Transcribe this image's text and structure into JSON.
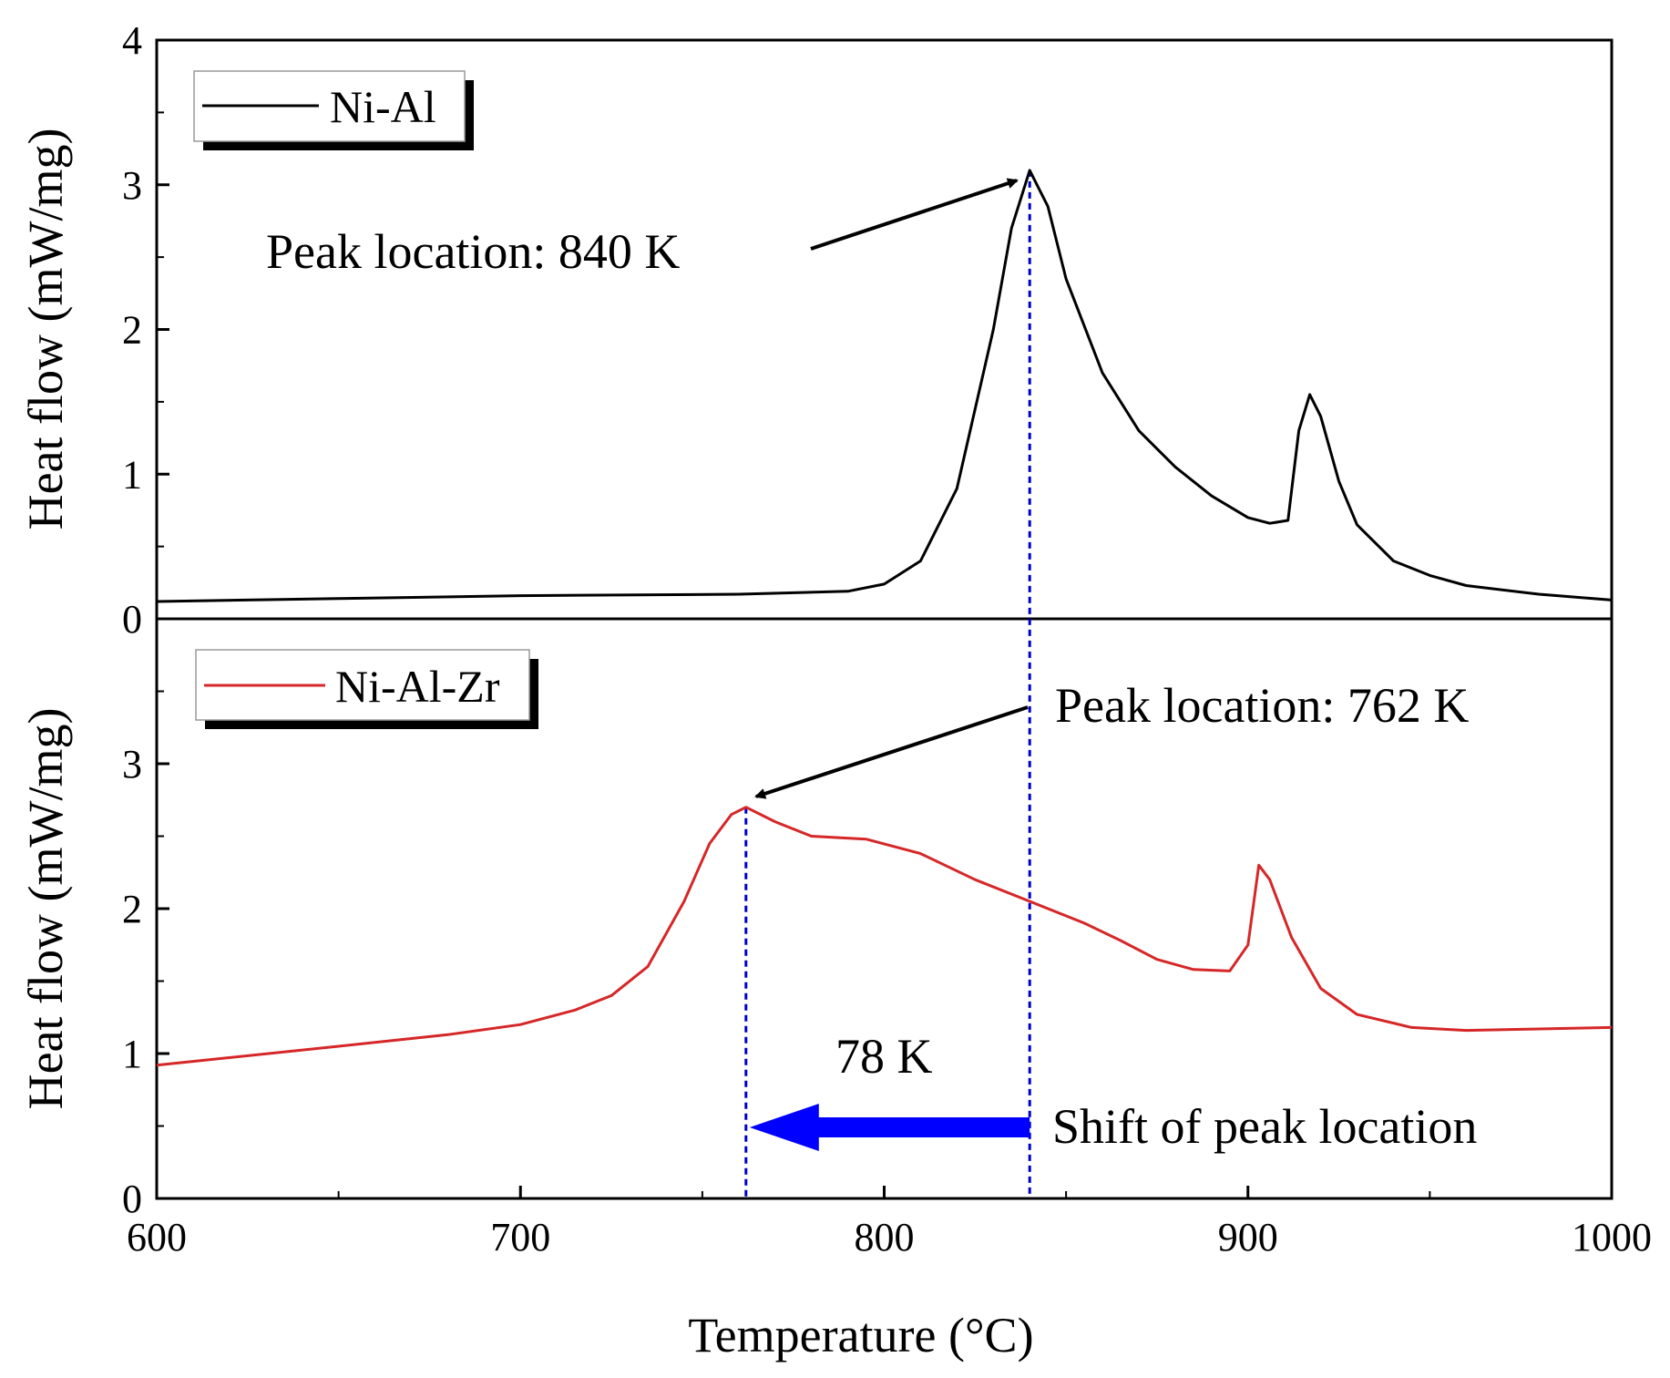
{
  "chart_data": {
    "type": "line",
    "xlabel": "Temperature (°C)",
    "xlim": [
      600,
      1000
    ],
    "xticks": [
      600,
      700,
      800,
      900,
      1000
    ],
    "panels": [
      {
        "id": "top",
        "ylabel": "Heat flow (mW/mg)",
        "ylim": [
          0,
          4
        ],
        "yticks": [
          0,
          1,
          2,
          3,
          4
        ],
        "series": [
          {
            "name": "Ni-Al",
            "color": "#000000",
            "points": [
              [
                600,
                0.12
              ],
              [
                650,
                0.14
              ],
              [
                700,
                0.16
              ],
              [
                760,
                0.17
              ],
              [
                790,
                0.19
              ],
              [
                800,
                0.24
              ],
              [
                810,
                0.4
              ],
              [
                820,
                0.9
              ],
              [
                830,
                2.0
              ],
              [
                835,
                2.7
              ],
              [
                840,
                3.1
              ],
              [
                845,
                2.85
              ],
              [
                850,
                2.35
              ],
              [
                860,
                1.7
              ],
              [
                870,
                1.3
              ],
              [
                880,
                1.05
              ],
              [
                890,
                0.85
              ],
              [
                900,
                0.7
              ],
              [
                906,
                0.66
              ],
              [
                911,
                0.68
              ],
              [
                914,
                1.3
              ],
              [
                917,
                1.55
              ],
              [
                920,
                1.4
              ],
              [
                925,
                0.95
              ],
              [
                930,
                0.65
              ],
              [
                940,
                0.4
              ],
              [
                950,
                0.3
              ],
              [
                960,
                0.23
              ],
              [
                980,
                0.17
              ],
              [
                1000,
                0.13
              ]
            ]
          }
        ],
        "legend": "Ni-Al",
        "annotations": [
          {
            "text": "Peak location: 840 K"
          }
        ],
        "peak_marker": {
          "x": 840,
          "y": 3.1
        }
      },
      {
        "id": "bottom",
        "ylabel": "Heat flow (mW/mg)",
        "ylim": [
          0,
          4
        ],
        "yticks": [
          0,
          1,
          2,
          3
        ],
        "series": [
          {
            "name": "Ni-Al-Zr",
            "color": "#d62728",
            "points": [
              [
                600,
                0.92
              ],
              [
                650,
                1.05
              ],
              [
                680,
                1.13
              ],
              [
                700,
                1.2
              ],
              [
                715,
                1.3
              ],
              [
                725,
                1.4
              ],
              [
                735,
                1.6
              ],
              [
                745,
                2.05
              ],
              [
                752,
                2.45
              ],
              [
                758,
                2.65
              ],
              [
                762,
                2.7
              ],
              [
                770,
                2.6
              ],
              [
                780,
                2.5
              ],
              [
                795,
                2.48
              ],
              [
                810,
                2.38
              ],
              [
                825,
                2.2
              ],
              [
                840,
                2.05
              ],
              [
                855,
                1.9
              ],
              [
                865,
                1.78
              ],
              [
                875,
                1.65
              ],
              [
                885,
                1.58
              ],
              [
                895,
                1.57
              ],
              [
                900,
                1.75
              ],
              [
                903,
                2.3
              ],
              [
                906,
                2.2
              ],
              [
                912,
                1.8
              ],
              [
                920,
                1.45
              ],
              [
                930,
                1.27
              ],
              [
                945,
                1.18
              ],
              [
                960,
                1.16
              ],
              [
                980,
                1.17
              ],
              [
                1000,
                1.18
              ]
            ]
          }
        ],
        "legend": "Ni-Al-Zr",
        "annotations": [
          {
            "text": "Peak location: 762 K"
          },
          {
            "text": "78 K"
          },
          {
            "text": "Shift of peak location"
          }
        ],
        "peak_marker": {
          "x": 762,
          "y": 2.7
        }
      }
    ],
    "vertical_guides": [
      762,
      840
    ],
    "shift_arrow": {
      "from": 840,
      "to": 762,
      "color": "#0000ff"
    },
    "guide_color": "#0000cc"
  }
}
